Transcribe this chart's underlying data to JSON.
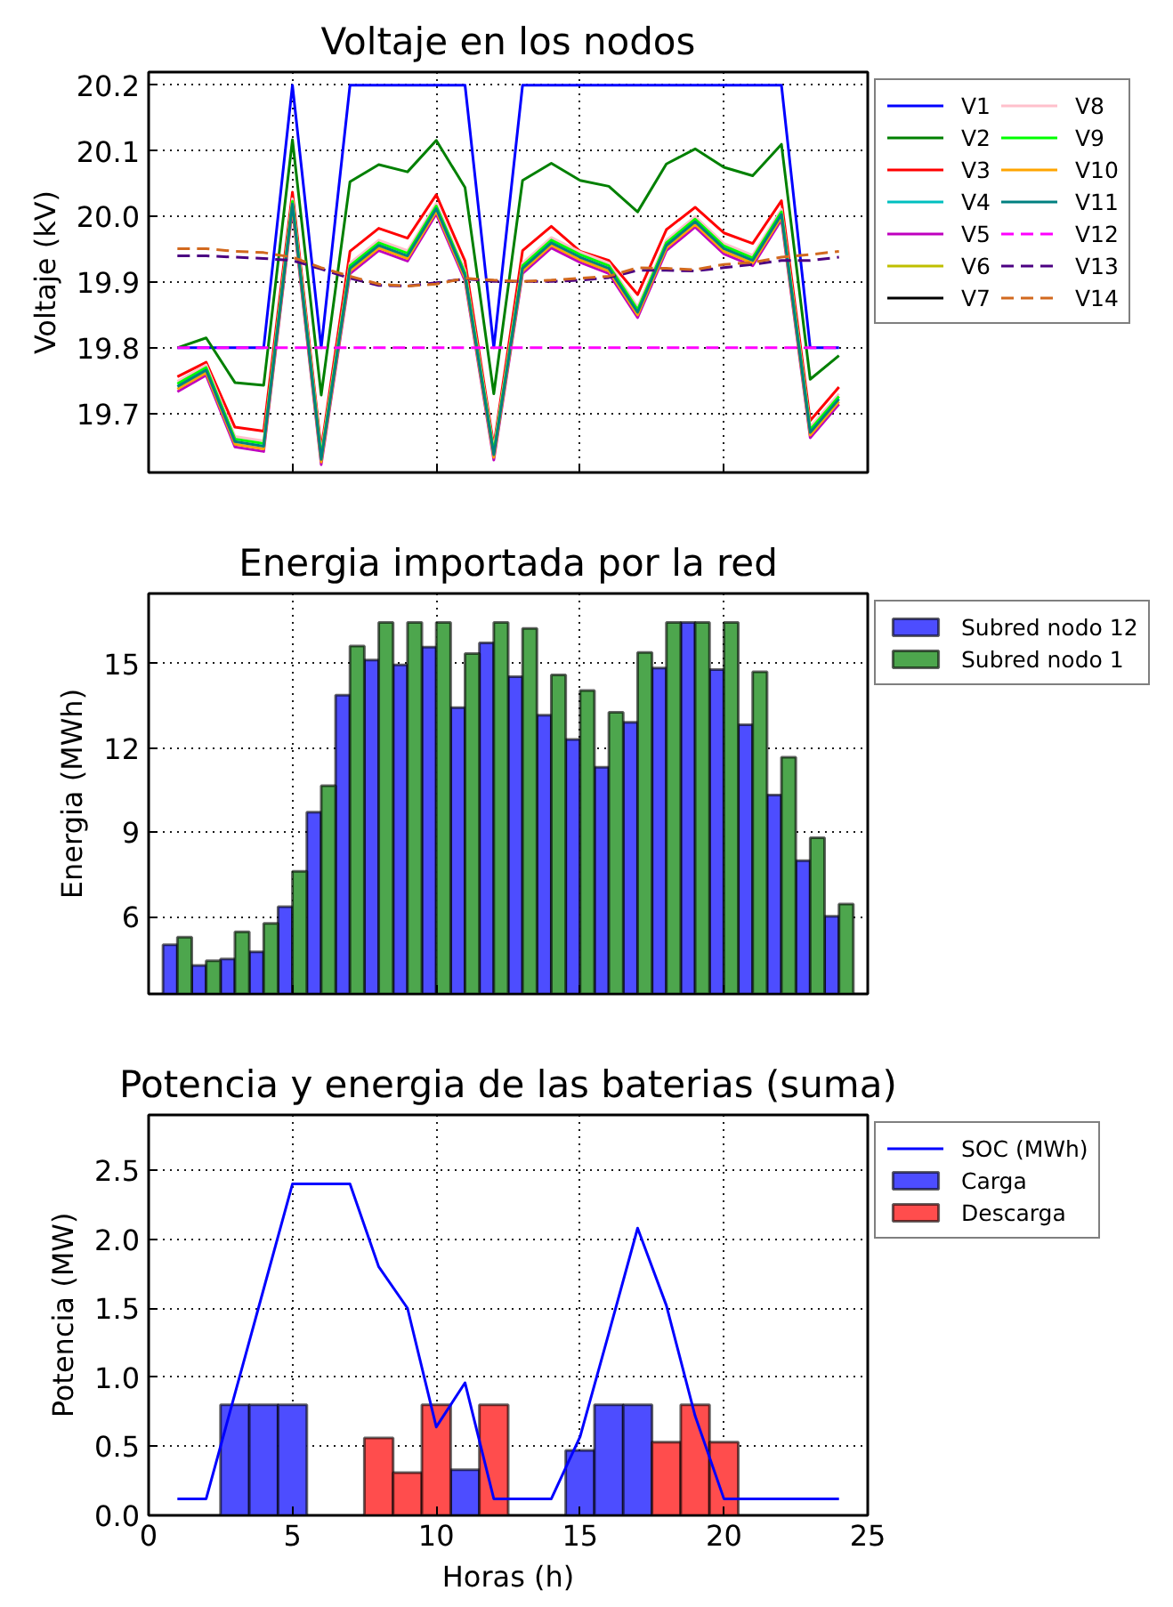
{
  "chart_data": [
    {
      "type": "line",
      "title": "Voltaje en los nodos",
      "ylabel": "Voltaje (kV)",
      "x": [
        1,
        2,
        3,
        4,
        5,
        6,
        7,
        8,
        9,
        10,
        11,
        12,
        13,
        14,
        15,
        16,
        17,
        18,
        19,
        20,
        21,
        22,
        23,
        24
      ],
      "xlim": [
        0,
        25
      ],
      "xticks": [
        0,
        5,
        10,
        15,
        20,
        25
      ],
      "ylim": [
        19.61,
        20.22
      ],
      "yticks": [
        19.7,
        19.8,
        19.9,
        {
          "value": 20,
          "label": "20.0"
        },
        20.1,
        20.2
      ],
      "tick_labels": "y",
      "grid": true,
      "legend": "right",
      "line_style": "solid",
      "series": [
        {
          "name": "V1",
          "color": "#0000ff",
          "values": [
            19.8,
            19.8,
            19.8,
            19.8,
            20.2,
            19.8,
            20.2,
            20.2,
            20.2,
            20.2,
            20.2,
            19.8,
            20.2,
            20.2,
            20.2,
            20.2,
            20.2,
            20.2,
            20.2,
            20.2,
            20.2,
            20.2,
            19.8,
            19.8
          ]
        },
        {
          "name": "V2",
          "color": "#008000",
          "values": [
            19.8,
            19.815,
            19.747,
            19.743,
            20.117,
            19.728,
            20.053,
            20.079,
            20.068,
            20.116,
            20.044,
            19.73,
            20.055,
            20.081,
            20.055,
            20.046,
            20.007,
            20.08,
            20.103,
            20.075,
            20.062,
            20.11,
            19.752,
            19.788
          ]
        },
        {
          "name": "V3",
          "color": "#ff0000",
          "values": [
            19.756,
            19.778,
            19.679,
            19.673,
            20.037,
            19.645,
            19.947,
            19.982,
            19.967,
            20.033,
            19.932,
            19.65,
            19.948,
            19.985,
            19.947,
            19.933,
            19.881,
            19.98,
            20.014,
            19.975,
            19.959,
            20.024,
            19.689,
            19.74
          ]
        },
        {
          "name": "V4",
          "color": "#00bfbf",
          "values": [
            null,
            null,
            null,
            null,
            null,
            null,
            null,
            null,
            null,
            null,
            null,
            null,
            null,
            null,
            null,
            null,
            null,
            null,
            null,
            null,
            null,
            null,
            null,
            null
          ]
        },
        {
          "name": "V5",
          "color": "#bf00bf",
          "values": [
            19.733,
            19.758,
            19.649,
            19.642,
            20.011,
            19.622,
            19.913,
            19.948,
            19.932,
            20.004,
            19.902,
            19.629,
            19.913,
            19.952,
            19.93,
            19.913,
            19.846,
            19.948,
            19.984,
            19.943,
            19.925,
            19.995,
            19.663,
            19.714
          ]
        },
        {
          "name": "V6",
          "color": "#bfbf00",
          "values": [
            null,
            null,
            null,
            null,
            null,
            null,
            null,
            null,
            null,
            null,
            null,
            null,
            null,
            null,
            null,
            null,
            null,
            null,
            null,
            null,
            null,
            null,
            null,
            null
          ]
        },
        {
          "name": "V7",
          "color": "#000000",
          "values": [
            null,
            null,
            null,
            null,
            null,
            null,
            null,
            null,
            null,
            null,
            null,
            null,
            null,
            null,
            null,
            null,
            null,
            null,
            null,
            null,
            null,
            null,
            null,
            null
          ]
        },
        {
          "name": "V8",
          "color": "#ffc0cb",
          "values": [
            19.749,
            19.774,
            19.665,
            19.658,
            20.027,
            19.638,
            19.929,
            19.964,
            19.948,
            20.02,
            19.918,
            19.645,
            19.929,
            19.968,
            19.946,
            19.929,
            19.862,
            19.964,
            20.0,
            19.959,
            19.941,
            20.011,
            19.679,
            19.73
          ]
        },
        {
          "name": "V9",
          "color": "#00ff00",
          "values": [
            19.745,
            19.77,
            19.661,
            19.654,
            20.023,
            19.634,
            19.925,
            19.96,
            19.944,
            20.016,
            19.914,
            19.641,
            19.925,
            19.964,
            19.942,
            19.925,
            19.858,
            19.96,
            19.996,
            19.955,
            19.937,
            20.007,
            19.675,
            19.726
          ]
        },
        {
          "name": "V10",
          "color": "#ffa500",
          "values": [
            19.737,
            19.762,
            19.653,
            19.646,
            20.015,
            19.626,
            19.917,
            19.952,
            19.936,
            20.008,
            19.906,
            19.633,
            19.917,
            19.956,
            19.934,
            19.917,
            19.85,
            19.952,
            19.988,
            19.947,
            19.929,
            19.999,
            19.667,
            19.718
          ]
        },
        {
          "name": "V11",
          "color": "#008080",
          "values": [
            19.741,
            19.766,
            19.657,
            19.65,
            20.019,
            19.63,
            19.921,
            19.956,
            19.94,
            20.012,
            19.91,
            19.637,
            19.921,
            19.96,
            19.938,
            19.921,
            19.854,
            19.956,
            19.992,
            19.951,
            19.933,
            20.003,
            19.671,
            19.722
          ]
        },
        {
          "name": "V12",
          "color": "#ff00ff",
          "line_style": "dashed",
          "values": [
            19.8,
            19.8,
            19.8,
            19.8,
            19.8,
            19.8,
            19.8,
            19.8,
            19.8,
            19.8,
            19.8,
            19.8,
            19.8,
            19.8,
            19.8,
            19.8,
            19.8,
            19.8,
            19.8,
            19.8,
            19.8,
            19.8,
            19.8,
            19.8
          ]
        },
        {
          "name": "V13",
          "color": "#4b0082",
          "line_style": "dashed",
          "values": [
            19.94,
            19.94,
            19.938,
            19.936,
            19.933,
            19.92,
            19.906,
            19.895,
            19.894,
            19.899,
            19.905,
            19.901,
            19.901,
            19.901,
            19.903,
            19.907,
            19.918,
            19.918,
            19.917,
            19.922,
            19.927,
            19.933,
            19.933,
            19.938
          ]
        },
        {
          "name": "V14",
          "color": "#d2691e",
          "line_style": "dashed",
          "values": [
            19.951,
            19.951,
            19.947,
            19.945,
            19.938,
            19.922,
            19.909,
            19.897,
            19.894,
            19.897,
            19.906,
            19.903,
            19.901,
            19.903,
            19.906,
            19.909,
            19.922,
            19.921,
            19.919,
            19.927,
            19.93,
            19.938,
            19.942,
            19.947
          ]
        }
      ]
    },
    {
      "type": "bar",
      "title": "Energia importada por la red",
      "ylabel": "Energia (MWh)",
      "x": [
        1,
        2,
        3,
        4,
        5,
        6,
        7,
        8,
        9,
        10,
        11,
        12,
        13,
        14,
        15,
        16,
        17,
        18,
        19,
        20,
        21,
        22,
        23,
        24
      ],
      "xlim": [
        0,
        25
      ],
      "xticks": [
        0,
        5,
        10,
        15,
        20,
        25
      ],
      "ylim": [
        3.25,
        17.5
      ],
      "yticks": [
        6,
        9,
        12,
        15
      ],
      "tick_labels": "y",
      "grid": true,
      "legend": "right",
      "series": [
        {
          "name": "Subred nodo 12",
          "color": "#4d4dff",
          "values": [
            5.0,
            4.26,
            4.49,
            4.75,
            6.35,
            9.72,
            13.88,
            15.13,
            14.96,
            15.59,
            13.44,
            15.74,
            14.54,
            13.17,
            12.31,
            11.32,
            12.92,
            14.85,
            16.47,
            14.79,
            12.83,
            10.33,
            7.99,
            6.01
          ]
        },
        {
          "name": "Subred nodo 1",
          "color": "#4da64d",
          "values": [
            5.27,
            4.43,
            5.46,
            5.76,
            7.61,
            10.66,
            15.63,
            16.47,
            16.47,
            16.47,
            15.36,
            16.47,
            16.26,
            14.6,
            14.05,
            13.27,
            15.4,
            16.47,
            16.47,
            16.47,
            14.71,
            11.67,
            8.81,
            6.45
          ]
        }
      ]
    },
    {
      "type": "bar",
      "stacked": true,
      "title": "Potencia y energia de las baterias (suma)",
      "xlabel": "Horas (h)",
      "ylabel": "Potencia (MW)",
      "x": [
        1,
        2,
        3,
        4,
        5,
        6,
        7,
        8,
        9,
        10,
        11,
        12,
        13,
        14,
        15,
        16,
        17,
        18,
        19,
        20,
        21,
        22,
        23,
        24
      ],
      "xlim": [
        0,
        25
      ],
      "xticks": [
        0,
        5,
        10,
        15,
        20,
        25
      ],
      "ylim": [
        0,
        2.9
      ],
      "yticks": [
        {
          "value": 0,
          "label": "0.0"
        },
        0.5,
        {
          "value": 1,
          "label": "1.0"
        },
        1.5,
        {
          "value": 2,
          "label": "2.0"
        },
        2.5
      ],
      "grid": true,
      "legend": "right",
      "series": [
        {
          "name": "SOC (MWh)",
          "type": "line",
          "color": "#0000ff",
          "values": [
            0.12,
            0.12,
            0.88,
            1.64,
            2.4,
            2.4,
            2.4,
            1.8,
            1.5,
            0.64,
            0.96,
            0.12,
            0.12,
            0.12,
            0.57,
            1.32,
            2.08,
            1.52,
            0.72,
            0.12,
            0.12,
            0.12,
            0.12,
            0.12
          ]
        },
        {
          "name": "Carga",
          "color": "#4d4dff",
          "values": [
            null,
            null,
            0.8,
            0.8,
            0.8,
            null,
            null,
            null,
            null,
            null,
            0.33,
            null,
            null,
            null,
            0.47,
            0.8,
            0.8,
            null,
            null,
            null,
            null,
            null,
            null,
            null
          ]
        },
        {
          "name": "Descarga",
          "color": "#ff4d4d",
          "values": [
            null,
            null,
            null,
            null,
            null,
            null,
            null,
            0.56,
            0.31,
            0.8,
            null,
            0.8,
            null,
            null,
            null,
            null,
            null,
            0.53,
            0.8,
            0.53,
            null,
            null,
            null,
            null
          ]
        }
      ]
    }
  ]
}
